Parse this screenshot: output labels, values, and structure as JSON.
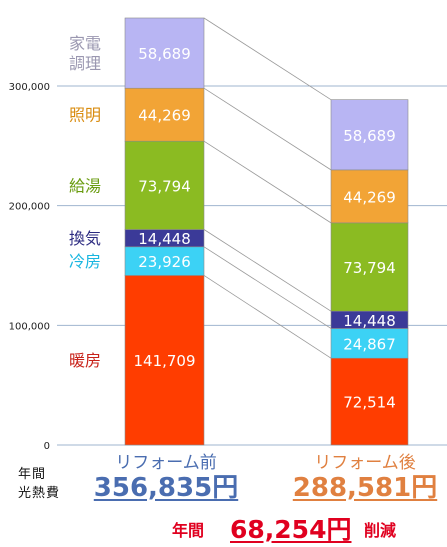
{
  "chart_data": {
    "type": "bar",
    "stacked": true,
    "categories": [
      "リフォーム前",
      "リフォーム後"
    ],
    "ylim": [
      0,
      360000
    ],
    "yticks": [
      "0",
      "100,000",
      "200,000",
      "300,000"
    ],
    "grid": true,
    "connector_lines": true,
    "series": [
      {
        "name": "暖房",
        "color": "#ff3d00",
        "label_color": "#c8221a",
        "values": [
          141709,
          72514
        ],
        "labels": [
          "141,709",
          "72,514"
        ]
      },
      {
        "name": "冷房",
        "color": "#3cd2f5",
        "label_color": "#19b6e0",
        "values": [
          23926,
          24867
        ],
        "labels": [
          "23,926",
          "24,867"
        ]
      },
      {
        "name": "換気",
        "color": "#3b3a98",
        "label_color": "#2b2a80",
        "values": [
          14448,
          14448
        ],
        "labels": [
          "14,448",
          "14,448"
        ]
      },
      {
        "name": "給湯",
        "color": "#8bbb22",
        "label_color": "#6a9c10",
        "values": [
          73794,
          73794
        ],
        "labels": [
          "73,794",
          "73,794"
        ]
      },
      {
        "name": "照明",
        "color": "#f2a436",
        "label_color": "#d98c10",
        "values": [
          44269,
          44269
        ],
        "labels": [
          "44,269",
          "44,269"
        ]
      },
      {
        "name": "家電調理",
        "color": "#b8b5f3",
        "label_color": "#9a97b0",
        "values": [
          58689,
          58689
        ],
        "labels": [
          "58,689",
          "58,689"
        ]
      }
    ]
  },
  "ylabel_lines": [
    "年間",
    "光熱費"
  ],
  "categories_colors": [
    "#4a6db0",
    "#e08040"
  ],
  "totals": [
    "356,835円",
    "288,581円"
  ],
  "saving": {
    "prefix": "年間",
    "value": "68,254円",
    "suffix": "削減"
  }
}
